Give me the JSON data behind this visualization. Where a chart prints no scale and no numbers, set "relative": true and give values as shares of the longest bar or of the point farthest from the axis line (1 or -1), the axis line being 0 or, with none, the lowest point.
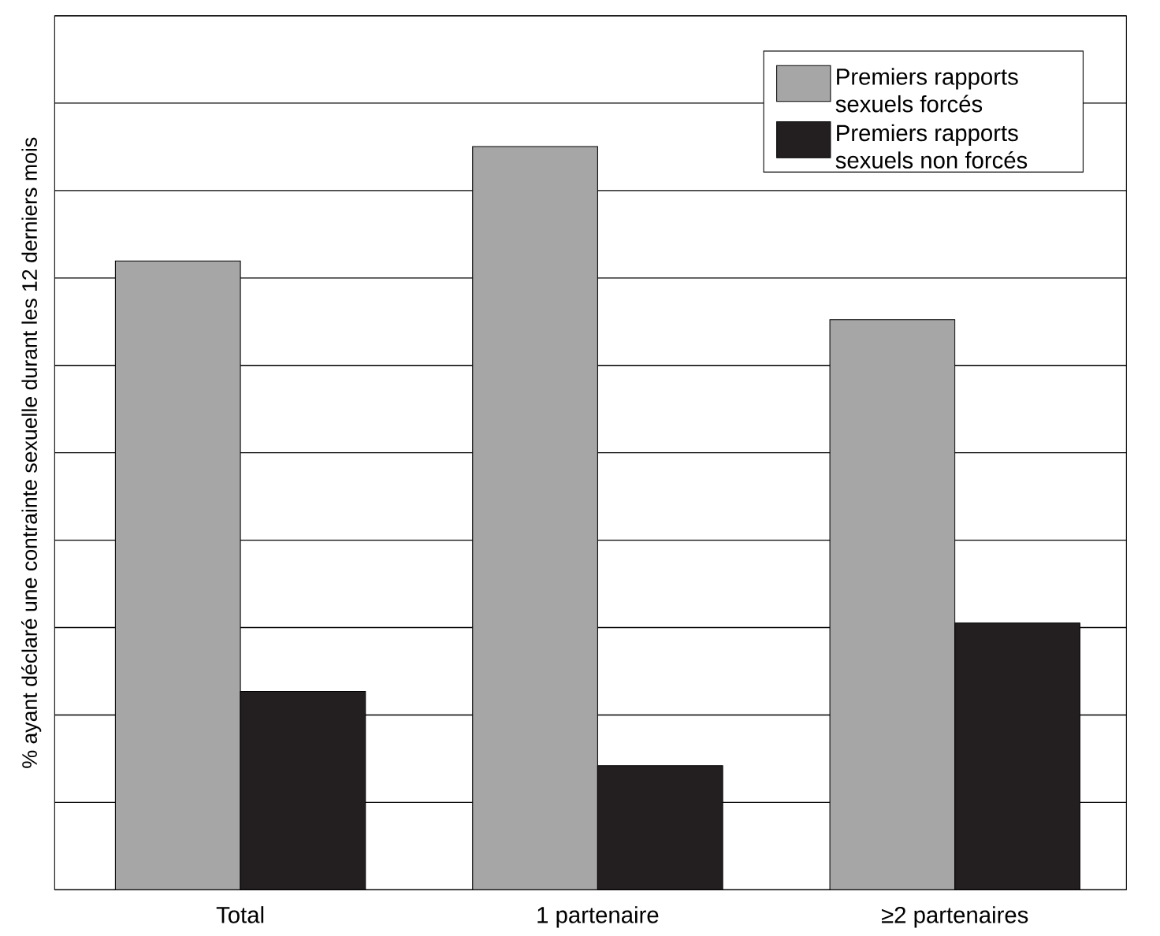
{
  "chart_data": {
    "type": "bar",
    "relative": true,
    "ylabel": "% ayant déclaré une contrainte sexuelle durant les 12 derniers mois",
    "categories": [
      "Total",
      "1 partenaire",
      "≥2 partenaires"
    ],
    "series": [
      {
        "name": "Premiers rapports sexuels forcés",
        "color": "#a6a6a6",
        "values": [
          0.846,
          1,
          0.767
        ]
      },
      {
        "name": "Premiers rapports sexuels non forcés",
        "color": "#231f20",
        "values": [
          0.267,
          0.167,
          0.359
        ]
      }
    ],
    "grid": "y",
    "legend": "top right"
  }
}
